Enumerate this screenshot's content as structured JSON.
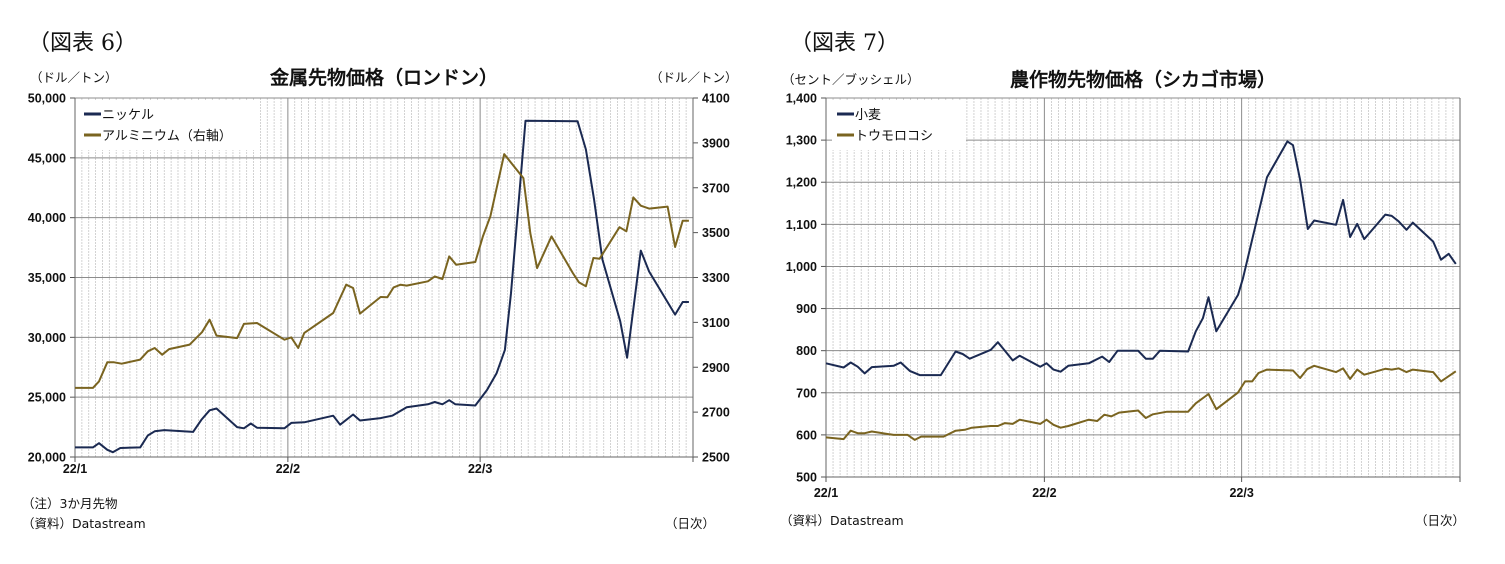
{
  "colors": {
    "navy": "#1b2a52",
    "olive": "#7a6420",
    "grid_minor": "#c8c8c8",
    "grid_major": "#8c8c8c"
  },
  "chart_data": [
    {
      "figure_label": "（図表 6）",
      "type": "line",
      "title": "金属先物価格（ロンドン）",
      "ylabel": "（ドル／トン）",
      "y2label": "（ドル／トン）",
      "note": "（注）3か月先物",
      "source": "（資料）Datastream",
      "xlabel": "（日次）",
      "x_unit": "days since 2022-01-01",
      "xlim": [
        0,
        90
      ],
      "x_ticks": [
        {
          "x": 0,
          "label": "22/1"
        },
        {
          "x": 31,
          "label": "22/2"
        },
        {
          "x": 59,
          "label": "22/3"
        }
      ],
      "ylim": [
        20000,
        50000
      ],
      "y_ticks": [
        "20,000",
        "25,000",
        "30,000",
        "35,000",
        "40,000",
        "45,000",
        "50,000"
      ],
      "y2lim": [
        2500,
        4100
      ],
      "y2_ticks": [
        "2500",
        "2700",
        "2900",
        "3100",
        "3300",
        "3500",
        "3700",
        "3900",
        "4100"
      ],
      "grid": true,
      "legend_position": "top-left",
      "series": [
        {
          "name": "ニッケル",
          "axis": "left",
          "color": "#1b2a52",
          "points": [
            [
              0,
              20800
            ],
            [
              2.6,
              20800
            ],
            [
              3.5,
              21150
            ],
            [
              4.7,
              20600
            ],
            [
              5.5,
              20400
            ],
            [
              6.6,
              20750
            ],
            [
              9.5,
              20800
            ],
            [
              10.6,
              21800
            ],
            [
              11.6,
              22150
            ],
            [
              13,
              22250
            ],
            [
              17.2,
              22100
            ],
            [
              18.4,
              23100
            ],
            [
              19.6,
              23900
            ],
            [
              20.6,
              24050
            ],
            [
              23.6,
              22500
            ],
            [
              24.6,
              22400
            ],
            [
              25.6,
              22800
            ],
            [
              26.5,
              22450
            ],
            [
              30.5,
              22400
            ],
            [
              31.5,
              22850
            ],
            [
              33.4,
              22900
            ],
            [
              37.6,
              23450
            ],
            [
              38.6,
              22700
            ],
            [
              40.5,
              23550
            ],
            [
              41.5,
              23050
            ],
            [
              44.5,
              23250
            ],
            [
              46.2,
              23450
            ],
            [
              48.3,
              24150
            ],
            [
              51.4,
              24400
            ],
            [
              52.4,
              24600
            ],
            [
              53.5,
              24400
            ],
            [
              54.5,
              24750
            ],
            [
              55.4,
              24400
            ],
            [
              58.3,
              24300
            ],
            [
              60,
              25600
            ],
            [
              61.4,
              27000
            ],
            [
              62.6,
              28950
            ],
            [
              63.5,
              33700
            ],
            [
              65.6,
              48100
            ],
            [
              73.2,
              48050
            ],
            [
              74.4,
              45700
            ],
            [
              75.6,
              41500
            ],
            [
              76.8,
              36500
            ],
            [
              79.4,
              31350
            ],
            [
              80.4,
              28300
            ],
            [
              82.4,
              37250
            ],
            [
              83.6,
              35500
            ],
            [
              87.4,
              31900
            ],
            [
              88.5,
              32950
            ],
            [
              89.4,
              32950
            ]
          ]
        },
        {
          "name": "アルミニウム（右軸）",
          "axis": "right",
          "color": "#7a6420",
          "points": [
            [
              0,
              2808
            ],
            [
              2.6,
              2808
            ],
            [
              3.5,
              2837
            ],
            [
              4.7,
              2922
            ],
            [
              5.7,
              2922
            ],
            [
              6.8,
              2916
            ],
            [
              9.5,
              2934
            ],
            [
              10.6,
              2971
            ],
            [
              11.6,
              2986
            ],
            [
              12.7,
              2956
            ],
            [
              13.7,
              2981
            ],
            [
              16.7,
              3001
            ],
            [
              18.5,
              3056
            ],
            [
              19.6,
              3112
            ],
            [
              20.6,
              3041
            ],
            [
              23.6,
              3030
            ],
            [
              24.6,
              3093
            ],
            [
              26.5,
              3097
            ],
            [
              30.5,
              3023
            ],
            [
              31.5,
              3033
            ],
            [
              32.5,
              2986
            ],
            [
              33.4,
              3053
            ],
            [
              37.6,
              3142
            ],
            [
              39.5,
              3268
            ],
            [
              40.5,
              3253
            ],
            [
              41.5,
              3139
            ],
            [
              44.5,
              3213
            ],
            [
              45.5,
              3212
            ],
            [
              46.4,
              3256
            ],
            [
              47.4,
              3268
            ],
            [
              48.3,
              3264
            ],
            [
              51.4,
              3283
            ],
            [
              52.4,
              3305
            ],
            [
              53.5,
              3293
            ],
            [
              54.5,
              3394
            ],
            [
              55.5,
              3357
            ],
            [
              58.3,
              3369
            ],
            [
              59.4,
              3483
            ],
            [
              60.5,
              3573
            ],
            [
              62.5,
              3850
            ],
            [
              65.3,
              3743
            ],
            [
              66.3,
              3498
            ],
            [
              67.3,
              3342
            ],
            [
              69.4,
              3483
            ],
            [
              72.5,
              3320
            ],
            [
              73.4,
              3278
            ],
            [
              74.4,
              3261
            ],
            [
              75.5,
              3387
            ],
            [
              76.4,
              3384
            ],
            [
              79.3,
              3524
            ],
            [
              80.3,
              3506
            ],
            [
              81.3,
              3657
            ],
            [
              82.4,
              3620
            ],
            [
              83.6,
              3607
            ],
            [
              86.3,
              3616
            ],
            [
              87.4,
              3436
            ],
            [
              88.5,
              3553
            ],
            [
              89.4,
              3553
            ]
          ]
        }
      ]
    },
    {
      "figure_label": "（図表 7）",
      "type": "line",
      "title": "農作物先物価格（シカゴ市場）",
      "ylabel": "（セント／ブッシェル）",
      "source": "（資料）Datastream",
      "xlabel": "（日次）",
      "x_unit": "days since 2022-01-01",
      "xlim": [
        0,
        90
      ],
      "x_ticks": [
        {
          "x": 0,
          "label": "22/1"
        },
        {
          "x": 31,
          "label": "22/2"
        },
        {
          "x": 59,
          "label": "22/3"
        }
      ],
      "ylim": [
        500,
        1400
      ],
      "y_ticks": [
        "500",
        "600",
        "700",
        "800",
        "900",
        "1,000",
        "1,100",
        "1,200",
        "1,300",
        "1,400"
      ],
      "grid": true,
      "legend_position": "top-left",
      "series": [
        {
          "name": "小麦",
          "axis": "left",
          "color": "#1b2a52",
          "points": [
            [
              0,
              770
            ],
            [
              2.5,
              760
            ],
            [
              3.5,
              772
            ],
            [
              4.5,
              762
            ],
            [
              5.5,
              746
            ],
            [
              6.5,
              761
            ],
            [
              9.6,
              764
            ],
            [
              10.6,
              772
            ],
            [
              11.9,
              752
            ],
            [
              13.3,
              742
            ],
            [
              16.3,
              742
            ],
            [
              18.4,
              798
            ],
            [
              19.4,
              792
            ],
            [
              20.4,
              781
            ],
            [
              23.4,
              802
            ],
            [
              24.4,
              820
            ],
            [
              25.4,
              800
            ],
            [
              26.5,
              777
            ],
            [
              27.5,
              788
            ],
            [
              30.4,
              762
            ],
            [
              31.3,
              770
            ],
            [
              32.3,
              755
            ],
            [
              33.3,
              750
            ],
            [
              34.4,
              764
            ],
            [
              37.3,
              770
            ],
            [
              39.2,
              786
            ],
            [
              40.2,
              773
            ],
            [
              41.4,
              800
            ],
            [
              44.3,
              800
            ],
            [
              45.4,
              781
            ],
            [
              46.4,
              781
            ],
            [
              47.4,
              800
            ],
            [
              51.4,
              798
            ],
            [
              52.5,
              846
            ],
            [
              53.5,
              877
            ],
            [
              54.3,
              927
            ],
            [
              55.4,
              846
            ],
            [
              58.5,
              933
            ],
            [
              59.2,
              972
            ],
            [
              62.6,
              1212
            ],
            [
              65.5,
              1297
            ],
            [
              66.3,
              1288
            ],
            [
              67.3,
              1206
            ],
            [
              68.4,
              1089
            ],
            [
              69.3,
              1109
            ],
            [
              72.4,
              1099
            ],
            [
              73.4,
              1158
            ],
            [
              74.4,
              1070
            ],
            [
              75.4,
              1101
            ],
            [
              76.4,
              1065
            ],
            [
              79.4,
              1123
            ],
            [
              80.3,
              1120
            ],
            [
              81.3,
              1107
            ],
            [
              82.4,
              1087
            ],
            [
              83.3,
              1104
            ],
            [
              86.2,
              1059
            ],
            [
              87.3,
              1016
            ],
            [
              88.4,
              1030
            ],
            [
              89.4,
              1006
            ]
          ]
        },
        {
          "name": "トウモロコシ",
          "axis": "left",
          "color": "#7a6420",
          "points": [
            [
              0,
              594
            ],
            [
              2.5,
              590
            ],
            [
              3.5,
              610
            ],
            [
              4.5,
              604
            ],
            [
              5.5,
              604
            ],
            [
              6.5,
              608
            ],
            [
              9.6,
              600
            ],
            [
              11.6,
              600
            ],
            [
              12.6,
              588
            ],
            [
              13.5,
              596
            ],
            [
              16.7,
              596
            ],
            [
              18.4,
              610
            ],
            [
              19.7,
              612
            ],
            [
              20.7,
              617
            ],
            [
              23.4,
              621
            ],
            [
              24.4,
              621
            ],
            [
              25.4,
              628
            ],
            [
              26.5,
              626
            ],
            [
              27.5,
              636
            ],
            [
              30.4,
              626
            ],
            [
              31.3,
              636
            ],
            [
              32.3,
              624
            ],
            [
              33.3,
              617
            ],
            [
              34.4,
              621
            ],
            [
              37.3,
              636
            ],
            [
              38.5,
              633
            ],
            [
              39.5,
              648
            ],
            [
              40.5,
              644
            ],
            [
              41.6,
              653
            ],
            [
              44.3,
              658
            ],
            [
              45.4,
              640
            ],
            [
              46.4,
              649
            ],
            [
              48.4,
              655
            ],
            [
              51.4,
              655
            ],
            [
              52.5,
              675
            ],
            [
              54.3,
              697
            ],
            [
              55.4,
              661
            ],
            [
              58.5,
              701
            ],
            [
              59.5,
              727
            ],
            [
              60.5,
              727
            ],
            [
              61.4,
              747
            ],
            [
              62.6,
              755
            ],
            [
              66.3,
              753
            ],
            [
              67.3,
              735
            ],
            [
              68.3,
              756
            ],
            [
              69.3,
              764
            ],
            [
              72.4,
              749
            ],
            [
              73.4,
              758
            ],
            [
              74.4,
              733
            ],
            [
              75.4,
              755
            ],
            [
              76.4,
              743
            ],
            [
              79.4,
              757
            ],
            [
              80.3,
              755
            ],
            [
              81.3,
              758
            ],
            [
              82.4,
              749
            ],
            [
              83.3,
              755
            ],
            [
              86.2,
              749
            ],
            [
              87.3,
              727
            ],
            [
              89.4,
              751
            ]
          ]
        }
      ]
    }
  ]
}
